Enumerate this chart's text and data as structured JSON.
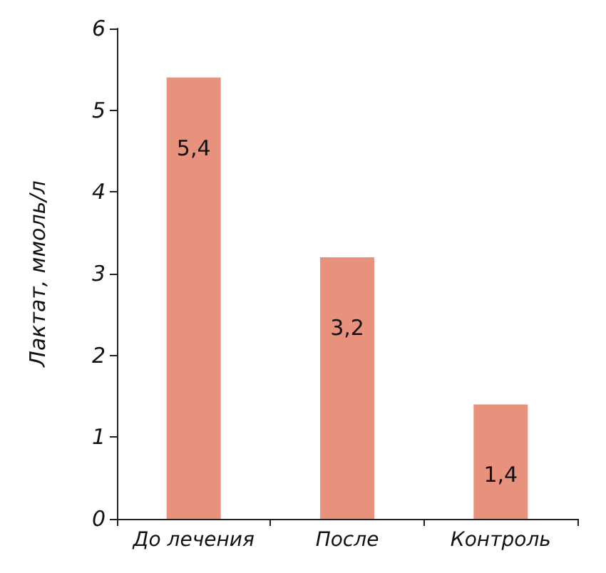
{
  "chart_data": {
    "type": "bar",
    "ylabel": "Лактат, ммоль/л",
    "categories": [
      "До лечения",
      "После",
      "Контроль"
    ],
    "values": [
      5.4,
      3.2,
      1.4
    ],
    "color": "#e8917c",
    "value_labels": [
      "5,4",
      "3,2",
      "1,4"
    ],
    "ylim": [
      0,
      6
    ],
    "yticks": [
      0,
      1,
      2,
      3,
      4,
      5,
      6
    ],
    "grid": false
  }
}
